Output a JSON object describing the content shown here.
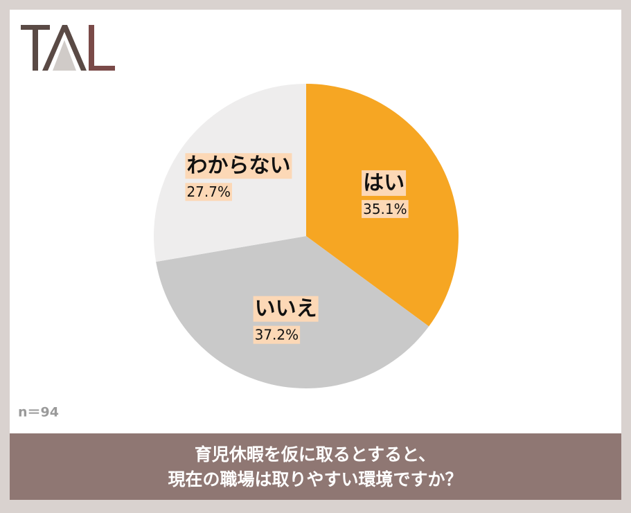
{
  "chart_data": {
    "type": "pie",
    "categories": [
      "はい",
      "いいえ",
      "わからない"
    ],
    "values": [
      35.1,
      37.2,
      27.7
    ],
    "value_labels": [
      "35.1%",
      "37.2%",
      "27.7%"
    ],
    "colors": [
      "#f6a623",
      "#c9c9c9",
      "#eeeded"
    ],
    "note": "n＝94",
    "title_lines": [
      "育児休暇を仮に取るとすると、",
      "現在の職場は取りやすい環境ですか？"
    ]
  }
}
